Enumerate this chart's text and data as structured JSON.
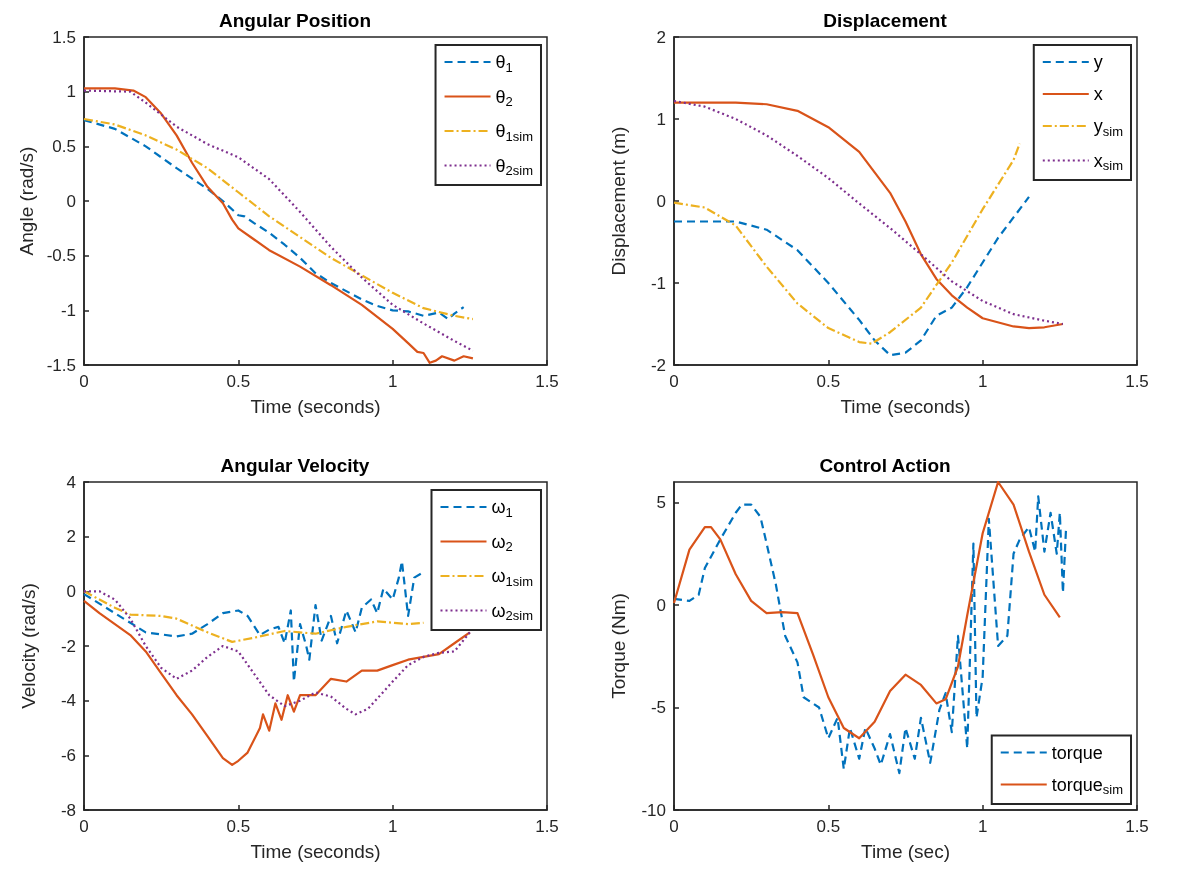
{
  "chart_data": [
    {
      "type": "line",
      "title": "Angular Position",
      "xlabel": "Time (seconds)",
      "ylabel": "Angle (rad/s)",
      "xlim": [
        0,
        1.5
      ],
      "xticks": [
        0,
        0.5,
        1,
        1.5
      ],
      "ylim": [
        -1.5,
        1.5
      ],
      "yticks": [
        -1.5,
        -1,
        -0.5,
        0,
        0.5,
        1,
        1.5
      ],
      "grid": false,
      "legend": "top right",
      "series": [
        {
          "name": "θ$_{1}$",
          "color": "#0072bd",
          "line_style": "dashed",
          "x": [
            0,
            0.1,
            0.2,
            0.3,
            0.4,
            0.45,
            0.5,
            0.52,
            0.55,
            0.6,
            0.65,
            0.7,
            0.75,
            0.8,
            0.9,
            0.95,
            1.0,
            1.05,
            1.1,
            1.15,
            1.18,
            1.2,
            1.23
          ],
          "values": [
            0.74,
            0.66,
            0.5,
            0.3,
            0.11,
            0,
            -0.13,
            -0.14,
            -0.2,
            -0.29,
            -0.4,
            -0.52,
            -0.66,
            -0.75,
            -0.9,
            -0.96,
            -1.0,
            -1.01,
            -1.05,
            -1.02,
            -1.08,
            -1.03,
            -0.97
          ]
        },
        {
          "name": "θ$_{2}$",
          "color": "#d95319",
          "line_style": "solid",
          "x": [
            0,
            0.1,
            0.16,
            0.2,
            0.25,
            0.3,
            0.35,
            0.4,
            0.45,
            0.48,
            0.5,
            0.55,
            0.6,
            0.7,
            0.8,
            0.9,
            1.0,
            1.05,
            1.08,
            1.1,
            1.12,
            1.14,
            1.16,
            1.2,
            1.23,
            1.26
          ],
          "values": [
            1.03,
            1.03,
            1.01,
            0.95,
            0.8,
            0.6,
            0.35,
            0.13,
            -0.02,
            -0.17,
            -0.25,
            -0.35,
            -0.45,
            -0.6,
            -0.77,
            -0.95,
            -1.17,
            -1.3,
            -1.38,
            -1.39,
            -1.48,
            -1.46,
            -1.42,
            -1.46,
            -1.42,
            -1.44
          ]
        },
        {
          "name": "θ$_{1sim}$",
          "color": "#edb120",
          "line_style": "dashdot",
          "x": [
            0,
            0.1,
            0.2,
            0.3,
            0.4,
            0.5,
            0.6,
            0.7,
            0.8,
            0.9,
            1.0,
            1.1,
            1.2,
            1.26
          ],
          "values": [
            0.75,
            0.7,
            0.6,
            0.47,
            0.3,
            0.08,
            -0.14,
            -0.33,
            -0.52,
            -0.68,
            -0.84,
            -0.98,
            -1.05,
            -1.08
          ]
        },
        {
          "name": "θ$_{2sim}$",
          "color": "#7e2f8e",
          "line_style": "dotted",
          "x": [
            0,
            0.15,
            0.2,
            0.3,
            0.4,
            0.5,
            0.6,
            0.7,
            0.8,
            0.9,
            1.0,
            1.1,
            1.2,
            1.26
          ],
          "values": [
            1.01,
            1.0,
            0.9,
            0.68,
            0.52,
            0.4,
            0.2,
            -0.1,
            -0.42,
            -0.7,
            -0.95,
            -1.12,
            -1.28,
            -1.37
          ]
        }
      ]
    },
    {
      "type": "line",
      "title": "Displacement",
      "xlabel": "Time (seconds)",
      "ylabel": "Displacement (m)",
      "xlim": [
        0,
        1.5
      ],
      "xticks": [
        0,
        0.5,
        1,
        1.5
      ],
      "ylim": [
        -2,
        2
      ],
      "yticks": [
        -2,
        -1,
        0,
        1,
        2
      ],
      "grid": false,
      "legend": "top right",
      "series": [
        {
          "name": "y",
          "color": "#0072bd",
          "line_style": "dashed",
          "x": [
            0,
            0.2,
            0.3,
            0.4,
            0.5,
            0.6,
            0.65,
            0.7,
            0.75,
            0.8,
            0.85,
            0.9,
            0.95,
            1.0,
            1.05,
            1.1,
            1.15
          ],
          "values": [
            -0.25,
            -0.25,
            -0.35,
            -0.6,
            -1.0,
            -1.45,
            -1.7,
            -1.88,
            -1.85,
            -1.7,
            -1.4,
            -1.3,
            -1.05,
            -0.75,
            -0.45,
            -0.2,
            0.05
          ]
        },
        {
          "name": "x",
          "color": "#d95319",
          "line_style": "solid",
          "x": [
            0,
            0.2,
            0.3,
            0.4,
            0.5,
            0.6,
            0.7,
            0.75,
            0.8,
            0.85,
            0.9,
            0.95,
            1.0,
            1.1,
            1.15,
            1.2,
            1.26
          ],
          "values": [
            1.2,
            1.2,
            1.18,
            1.1,
            0.9,
            0.6,
            0.1,
            -0.25,
            -0.65,
            -0.95,
            -1.15,
            -1.3,
            -1.43,
            -1.53,
            -1.55,
            -1.54,
            -1.5
          ]
        },
        {
          "name": "y$_{sim}$",
          "color": "#edb120",
          "line_style": "dashdot",
          "x": [
            0,
            0.1,
            0.2,
            0.3,
            0.4,
            0.5,
            0.6,
            0.64,
            0.7,
            0.8,
            0.9,
            1.0,
            1.1,
            1.12
          ],
          "values": [
            -0.02,
            -0.08,
            -0.3,
            -0.8,
            -1.25,
            -1.55,
            -1.72,
            -1.74,
            -1.6,
            -1.3,
            -0.75,
            -0.1,
            0.5,
            0.7
          ]
        },
        {
          "name": "x$_{sim}$",
          "color": "#7e2f8e",
          "line_style": "dotted",
          "x": [
            0,
            0.1,
            0.2,
            0.3,
            0.4,
            0.5,
            0.6,
            0.7,
            0.8,
            0.9,
            1.0,
            1.1,
            1.2,
            1.26
          ],
          "values": [
            1.22,
            1.15,
            1.0,
            0.8,
            0.55,
            0.28,
            -0.03,
            -0.33,
            -0.65,
            -0.98,
            -1.22,
            -1.38,
            -1.46,
            -1.5
          ]
        }
      ]
    },
    {
      "type": "line",
      "title": "Angular Velocity",
      "xlabel": "Time (seconds)",
      "ylabel": "Velocity (rad/s)",
      "xlim": [
        0,
        1.5
      ],
      "xticks": [
        0,
        0.5,
        1,
        1.5
      ],
      "ylim": [
        -8,
        4
      ],
      "yticks": [
        -8,
        -6,
        -4,
        -2,
        0,
        2,
        4
      ],
      "grid": false,
      "legend": "top right",
      "series": [
        {
          "name": "ω$_{1}$",
          "color": "#0072bd",
          "line_style": "dashed",
          "x": [
            0,
            0.1,
            0.2,
            0.3,
            0.35,
            0.4,
            0.45,
            0.5,
            0.53,
            0.57,
            0.6,
            0.63,
            0.65,
            0.67,
            0.68,
            0.7,
            0.72,
            0.73,
            0.75,
            0.77,
            0.8,
            0.82,
            0.85,
            0.88,
            0.9,
            0.93,
            0.95,
            0.97,
            1.0,
            1.02,
            1.03,
            1.05,
            1.07,
            1.1
          ],
          "values": [
            -0.1,
            -0.8,
            -1.5,
            -1.65,
            -1.55,
            -1.2,
            -0.8,
            -0.7,
            -0.9,
            -1.6,
            -1.4,
            -1.3,
            -1.9,
            -0.7,
            -3.3,
            -1.2,
            -2.0,
            -2.5,
            -0.5,
            -1.8,
            -0.9,
            -1.9,
            -0.7,
            -1.5,
            -0.6,
            -0.3,
            -0.8,
            0.1,
            -0.3,
            0.5,
            1.1,
            -0.9,
            0.5,
            0.7
          ]
        },
        {
          "name": "ω$_{2}$",
          "color": "#d95319",
          "line_style": "solid",
          "x": [
            0,
            0.05,
            0.1,
            0.15,
            0.2,
            0.25,
            0.3,
            0.35,
            0.4,
            0.45,
            0.48,
            0.5,
            0.53,
            0.57,
            0.58,
            0.6,
            0.62,
            0.64,
            0.66,
            0.68,
            0.7,
            0.75,
            0.8,
            0.85,
            0.9,
            0.95,
            1.0,
            1.05,
            1.1,
            1.15,
            1.2,
            1.25
          ],
          "values": [
            -0.35,
            -0.8,
            -1.2,
            -1.6,
            -2.2,
            -3.0,
            -3.8,
            -4.5,
            -5.3,
            -6.1,
            -6.35,
            -6.2,
            -5.9,
            -5.0,
            -4.5,
            -5.1,
            -4.1,
            -4.7,
            -3.8,
            -4.4,
            -3.8,
            -3.8,
            -3.2,
            -3.3,
            -2.9,
            -2.9,
            -2.7,
            -2.5,
            -2.4,
            -2.3,
            -1.9,
            -1.5
          ]
        },
        {
          "name": "ω$_{1sim}$",
          "color": "#edb120",
          "line_style": "dashdot",
          "x": [
            0,
            0.1,
            0.15,
            0.25,
            0.3,
            0.4,
            0.48,
            0.55,
            0.65,
            0.75,
            0.85,
            0.95,
            1.05,
            1.1
          ],
          "values": [
            0,
            -0.6,
            -0.85,
            -0.9,
            -1.0,
            -1.5,
            -1.85,
            -1.7,
            -1.45,
            -1.55,
            -1.3,
            -1.1,
            -1.2,
            -1.15
          ]
        },
        {
          "name": "ω$_{2sim}$",
          "color": "#7e2f8e",
          "line_style": "dotted",
          "x": [
            0,
            0.05,
            0.1,
            0.15,
            0.2,
            0.25,
            0.3,
            0.35,
            0.4,
            0.45,
            0.5,
            0.55,
            0.6,
            0.65,
            0.7,
            0.75,
            0.8,
            0.85,
            0.88,
            0.92,
            1.0,
            1.05,
            1.1,
            1.15,
            1.2,
            1.25
          ],
          "values": [
            0,
            0,
            -0.3,
            -1.0,
            -2.0,
            -2.8,
            -3.2,
            -2.9,
            -2.4,
            -2.0,
            -2.2,
            -3.0,
            -3.8,
            -4.2,
            -4.0,
            -3.7,
            -3.85,
            -4.3,
            -4.5,
            -4.3,
            -3.3,
            -2.7,
            -2.4,
            -2.25,
            -2.2,
            -1.5
          ]
        }
      ]
    },
    {
      "type": "line",
      "title": "Control Action",
      "xlabel": "Time (sec)",
      "ylabel": "Torque (Nm)",
      "xlim": [
        0,
        1.5
      ],
      "xticks": [
        0,
        0.5,
        1,
        1.5
      ],
      "ylim": [
        -10,
        6
      ],
      "yticks": [
        -10,
        -5,
        0,
        5
      ],
      "grid": false,
      "legend": "bottom right",
      "series": [
        {
          "name": "torque",
          "color": "#0072bd",
          "line_style": "dashed",
          "x": [
            0,
            0.05,
            0.08,
            0.1,
            0.15,
            0.2,
            0.22,
            0.25,
            0.28,
            0.3,
            0.33,
            0.36,
            0.4,
            0.42,
            0.47,
            0.5,
            0.53,
            0.55,
            0.57,
            0.6,
            0.62,
            0.65,
            0.67,
            0.7,
            0.73,
            0.75,
            0.78,
            0.8,
            0.83,
            0.86,
            0.88,
            0.9,
            0.92,
            0.95,
            0.97,
            0.98,
            1.0,
            1.02,
            1.05,
            1.08,
            1.1,
            1.12,
            1.15,
            1.17,
            1.18,
            1.2,
            1.22,
            1.24,
            1.25,
            1.26,
            1.27
          ],
          "values": [
            0.3,
            0.2,
            0.5,
            1.8,
            3.2,
            4.5,
            4.9,
            4.9,
            4.3,
            3.0,
            1.0,
            -1.5,
            -2.8,
            -4.5,
            -5.0,
            -6.5,
            -5.5,
            -8.0,
            -6.0,
            -7.5,
            -6.0,
            -7.0,
            -7.8,
            -6.3,
            -8.2,
            -6.0,
            -7.5,
            -5.5,
            -7.7,
            -5.1,
            -4.3,
            -6.2,
            -1.5,
            -7.0,
            3.0,
            -5.5,
            -3.5,
            4.2,
            -2.0,
            -1.5,
            2.5,
            3.2,
            3.8,
            2.6,
            5.3,
            2.6,
            4.5,
            2.5,
            4.5,
            0.6,
            3.7
          ]
        },
        {
          "name": "torque$_{sim}$",
          "color": "#d95319",
          "line_style": "solid",
          "x": [
            0,
            0.05,
            0.1,
            0.12,
            0.15,
            0.2,
            0.25,
            0.3,
            0.35,
            0.4,
            0.45,
            0.5,
            0.55,
            0.6,
            0.65,
            0.7,
            0.75,
            0.8,
            0.85,
            0.88,
            0.92,
            0.95,
            1.0,
            1.05,
            1.1,
            1.15,
            1.2,
            1.25
          ],
          "values": [
            0.1,
            2.7,
            3.8,
            3.8,
            3.2,
            1.5,
            0.2,
            -0.4,
            -0.35,
            -0.4,
            -2.4,
            -4.5,
            -6.0,
            -6.5,
            -5.7,
            -4.2,
            -3.4,
            -3.9,
            -4.8,
            -4.6,
            -3.0,
            -0.5,
            3.5,
            6.0,
            4.9,
            2.6,
            0.5,
            -0.6
          ]
        }
      ]
    }
  ]
}
